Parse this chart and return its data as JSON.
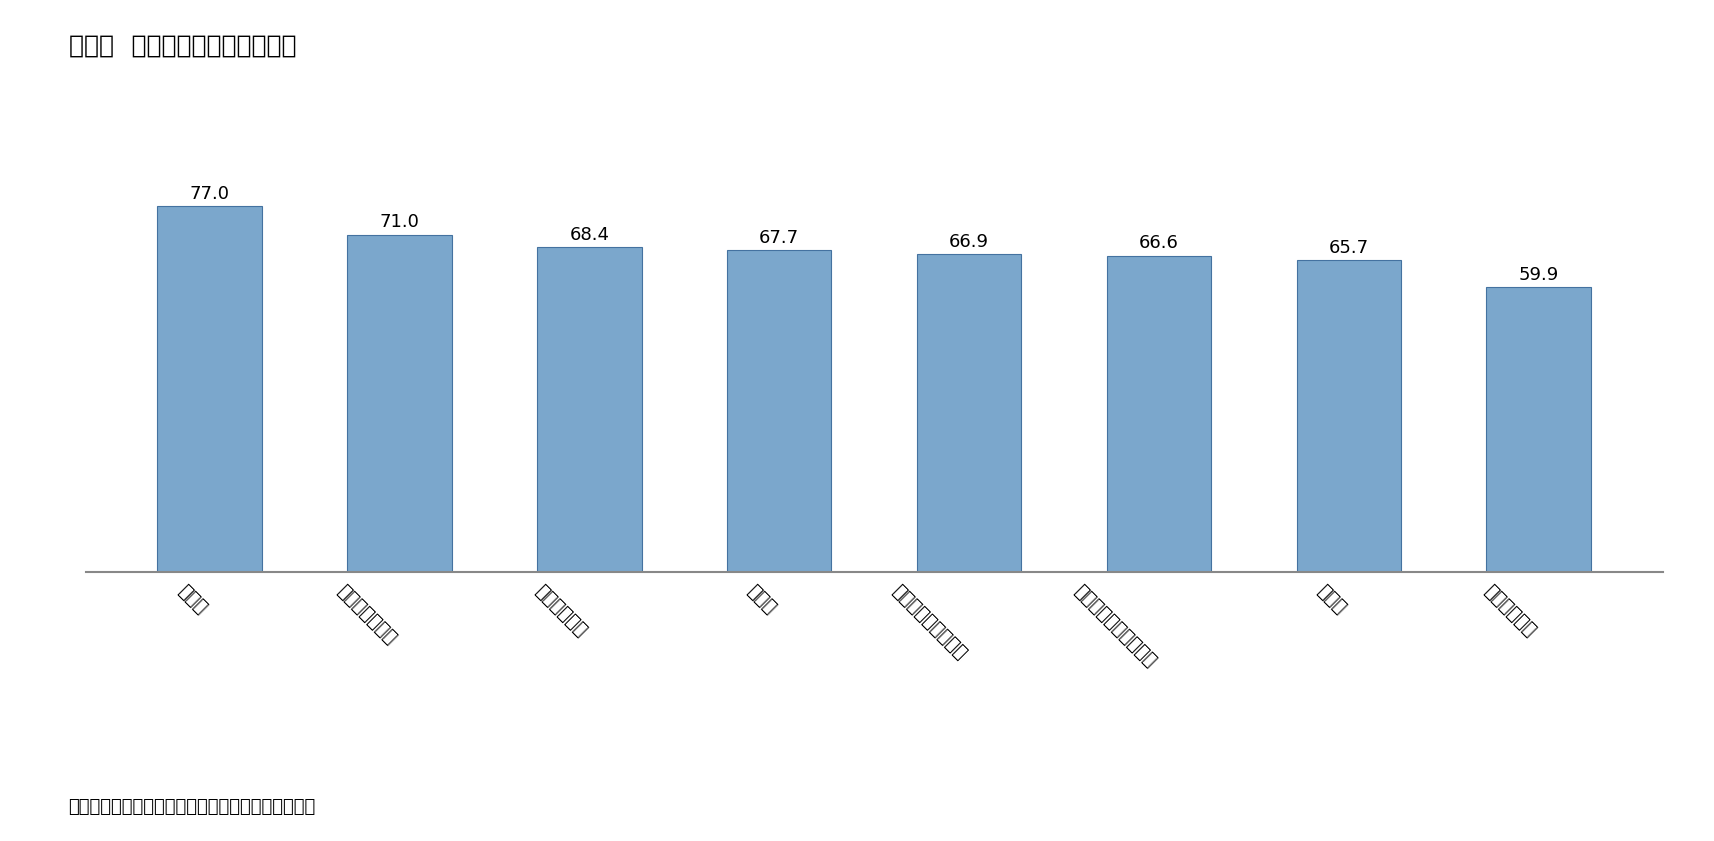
{
  "title": "図表２  地域別不買運動の参加率",
  "categories": [
    "江原道",
    "大邱・慶尚北道",
    "光州・全羅道",
    "ソウル",
    "大田・世宗・忠清道",
    "釜山・蔚山・慶尚南道",
    "済州道",
    "京畿道・仁川"
  ],
  "values": [
    77.0,
    71.0,
    68.4,
    67.7,
    66.9,
    66.6,
    65.7,
    59.9
  ],
  "bar_color": "#7ba7cc",
  "bar_edge_color": "#4472a0",
  "background_color": "#ffffff",
  "ylim": [
    0,
    85
  ],
  "caption": "資料）リアルメーターのホームページから筆者作成",
  "title_fontsize": 18,
  "label_fontsize": 13,
  "value_fontsize": 13,
  "caption_fontsize": 13,
  "label_rotation": -45
}
